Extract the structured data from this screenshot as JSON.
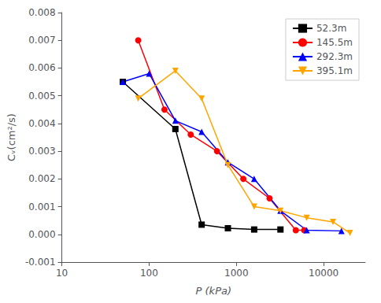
{
  "chart_data": {
    "type": "line",
    "xlabel": "P (kPa)",
    "ylabel": "Cᵥ(cm²/s)",
    "log": "x",
    "xlim": [
      10,
      30000
    ],
    "xticks": [
      10,
      100,
      1000,
      10000
    ],
    "ylim": [
      -0.001,
      0.008
    ],
    "yticks": [
      -0.001,
      {
        "value": 0,
        "label": "0.000"
      },
      0.001,
      0.002,
      0.003,
      0.004,
      0.005,
      0.006,
      0.007,
      0.008
    ],
    "grid": false,
    "legend": "upper right",
    "series": [
      {
        "name": "52.3m",
        "color": "black",
        "marker": "square",
        "x": [
          50,
          200,
          400,
          800,
          1600,
          3200
        ],
        "values": [
          0.0055,
          0.0038,
          0.00035,
          0.00022,
          0.000175,
          0.000175
        ]
      },
      {
        "name": "145.5m",
        "color": "red",
        "marker": "circle",
        "x": [
          75,
          150,
          300,
          600,
          1200,
          2400,
          4800,
          6000
        ],
        "values": [
          0.007,
          0.0045,
          0.0036,
          0.003,
          0.002,
          0.0013,
          0.00015,
          0.00015
        ]
      },
      {
        "name": "292.3m",
        "color": "blue",
        "marker": "triangle-up",
        "x": [
          50,
          100,
          200,
          400,
          800,
          1600,
          3200,
          6400,
          16000
        ],
        "values": [
          0.0055,
          0.0058,
          0.0041,
          0.0037,
          0.0026,
          0.002,
          0.00085,
          0.00015,
          0.000125
        ]
      },
      {
        "name": "395.1m",
        "color": "orange",
        "marker": "triangle-down",
        "x": [
          75,
          200,
          400,
          800,
          1600,
          3200,
          6400,
          12800,
          20000
        ],
        "values": [
          0.0049,
          0.0059,
          0.0049,
          0.0025,
          0.001,
          0.00085,
          0.0006,
          0.00045,
          5e-05
        ]
      }
    ]
  }
}
